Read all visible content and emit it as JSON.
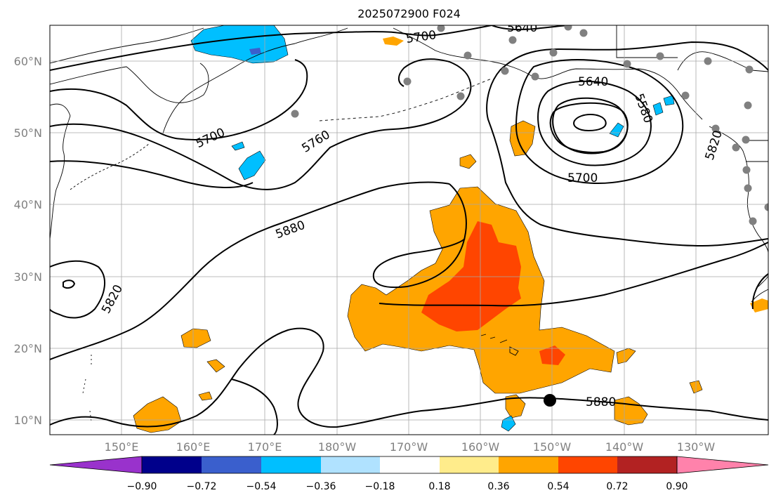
{
  "title": "2025072900 F024",
  "map": {
    "lat_labels": [
      "10°N",
      "20°N",
      "30°N",
      "40°N",
      "50°N",
      "60°N"
    ],
    "lon_labels": [
      "150°E",
      "160°E",
      "170°E",
      "180°W",
      "170°W",
      "160°W",
      "150°W",
      "140°W",
      "130°W"
    ],
    "label_color": "#808080",
    "contour_labels": [
      "5700",
      "5640",
      "5640",
      "5580",
      "5700",
      "5760",
      "5700",
      "5820",
      "5880",
      "5820",
      "5880"
    ]
  },
  "colorbar": {
    "tick_labels": [
      "−0.90",
      "−0.72",
      "−0.54",
      "−0.36",
      "−0.18",
      "0.18",
      "0.36",
      "0.54",
      "0.72",
      "0.90"
    ],
    "colors": [
      "#9932cc",
      "#00008b",
      "#3a5fcd",
      "#00bfff",
      "#b0e2ff",
      "#ffffff",
      "#ffec8b",
      "#ffa500",
      "#ff4500",
      "#b22222",
      "#ff82ab"
    ]
  }
}
